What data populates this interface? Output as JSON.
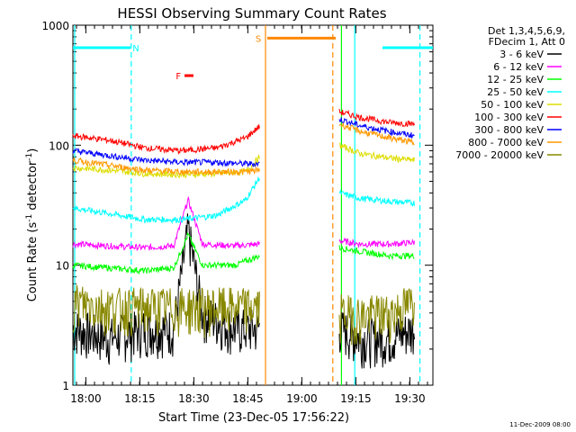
{
  "chart_data": {
    "type": "line",
    "title": "HESSI Observing Summary Count Rates",
    "xlabel": "Start Time (23-Dec-05 17:56:22)",
    "ylabel_main": "Count Rate (s",
    "ylabel_sup1": "-1",
    "ylabel_mid": " detector",
    "ylabel_sup2": "-1",
    "ylabel_end": ")",
    "yscale": "log",
    "ylim": [
      1,
      1000
    ],
    "xlim_minutes": [
      0,
      100
    ],
    "x_ticks": [
      {
        "label": "18:00",
        "m": 3.6
      },
      {
        "label": "18:15",
        "m": 18.6
      },
      {
        "label": "18:30",
        "m": 33.6
      },
      {
        "label": "18:45",
        "m": 48.6
      },
      {
        "label": "19:00",
        "m": 63.6
      },
      {
        "label": "19:15",
        "m": 78.6
      },
      {
        "label": "19:30",
        "m": 93.6
      }
    ],
    "y_ticks": [
      {
        "label": "1",
        "v": 1
      },
      {
        "label": "10",
        "v": 10
      },
      {
        "label": "100",
        "v": 100
      },
      {
        "label": "1000",
        "v": 1000
      }
    ],
    "legend_header": [
      "Det 1,3,4,5,6,9,",
      "FDecim 1, Att 0"
    ],
    "series": [
      {
        "name": "3 - 6 keV",
        "color": "#000000",
        "seg1": [
          [
            0,
            3
          ],
          [
            10,
            2.5
          ],
          [
            20,
            3
          ],
          [
            28,
            3
          ],
          [
            32,
            20
          ],
          [
            36,
            4
          ],
          [
            45,
            3
          ],
          [
            52,
            3
          ]
        ],
        "seg2": [
          [
            74,
            3
          ],
          [
            80,
            2.5
          ],
          [
            88,
            2.5
          ],
          [
            95,
            3
          ]
        ]
      },
      {
        "name": "6 - 12 keV",
        "color": "#ff00ff",
        "seg1": [
          [
            0,
            15
          ],
          [
            10,
            14.5
          ],
          [
            20,
            14
          ],
          [
            28,
            14.5
          ],
          [
            32,
            35
          ],
          [
            36,
            15
          ],
          [
            45,
            14.5
          ],
          [
            52,
            15
          ]
        ],
        "seg2": [
          [
            74,
            16
          ],
          [
            80,
            15
          ],
          [
            88,
            15
          ],
          [
            95,
            15.5
          ]
        ]
      },
      {
        "name": "12 - 25 keV",
        "color": "#00ff00",
        "seg1": [
          [
            0,
            10
          ],
          [
            10,
            9.5
          ],
          [
            20,
            9
          ],
          [
            28,
            9.5
          ],
          [
            32,
            18
          ],
          [
            36,
            10
          ],
          [
            45,
            10
          ],
          [
            52,
            12
          ]
        ],
        "seg2": [
          [
            74,
            14
          ],
          [
            80,
            13
          ],
          [
            88,
            12
          ],
          [
            95,
            12
          ]
        ]
      },
      {
        "name": "25 - 50 keV",
        "color": "#00ffff",
        "seg1": [
          [
            0,
            30
          ],
          [
            10,
            27
          ],
          [
            20,
            24
          ],
          [
            30,
            24
          ],
          [
            40,
            26
          ],
          [
            48,
            35
          ],
          [
            52,
            55
          ]
        ],
        "seg2": [
          [
            74,
            40
          ],
          [
            80,
            36
          ],
          [
            88,
            34
          ],
          [
            95,
            33
          ]
        ]
      },
      {
        "name": "50 - 100 keV",
        "color": "#dddd00",
        "seg1": [
          [
            0,
            65
          ],
          [
            10,
            62
          ],
          [
            20,
            58
          ],
          [
            30,
            57
          ],
          [
            40,
            58
          ],
          [
            48,
            60
          ],
          [
            52,
            80
          ]
        ],
        "seg2": [
          [
            74,
            100
          ],
          [
            80,
            85
          ],
          [
            88,
            78
          ],
          [
            95,
            75
          ]
        ]
      },
      {
        "name": "100 - 300 keV",
        "color": "#ff0000",
        "seg1": [
          [
            0,
            120
          ],
          [
            10,
            110
          ],
          [
            20,
            95
          ],
          [
            30,
            90
          ],
          [
            40,
            95
          ],
          [
            48,
            115
          ],
          [
            52,
            145
          ]
        ],
        "seg2": [
          [
            74,
            190
          ],
          [
            80,
            170
          ],
          [
            88,
            155
          ],
          [
            95,
            150
          ]
        ]
      },
      {
        "name": "300 - 800 keV",
        "color": "#0000ff",
        "seg1": [
          [
            0,
            90
          ],
          [
            10,
            82
          ],
          [
            20,
            75
          ],
          [
            30,
            72
          ],
          [
            40,
            72
          ],
          [
            48,
            70
          ],
          [
            52,
            70
          ]
        ],
        "seg2": [
          [
            74,
            165
          ],
          [
            80,
            145
          ],
          [
            88,
            130
          ],
          [
            95,
            120
          ]
        ]
      },
      {
        "name": "800 - 7000 keV",
        "color": "#ff9900",
        "seg1": [
          [
            0,
            75
          ],
          [
            10,
            68
          ],
          [
            20,
            62
          ],
          [
            30,
            60
          ],
          [
            40,
            60
          ],
          [
            48,
            60
          ],
          [
            52,
            62
          ]
        ],
        "seg2": [
          [
            74,
            150
          ],
          [
            80,
            130
          ],
          [
            88,
            115
          ],
          [
            95,
            105
          ]
        ]
      },
      {
        "name": "7000 - 20000 keV",
        "color": "#888800",
        "seg1": [
          [
            0,
            5
          ],
          [
            10,
            4.5
          ],
          [
            20,
            4.5
          ],
          [
            30,
            4.5
          ],
          [
            40,
            4.5
          ],
          [
            52,
            4.5
          ]
        ],
        "seg2": [
          [
            74,
            4
          ],
          [
            80,
            3.8
          ],
          [
            88,
            4
          ],
          [
            95,
            5
          ]
        ]
      }
    ],
    "flags": [
      {
        "label": "N",
        "color": "#00ffff",
        "m_start": 0,
        "m_end": 16,
        "label_m": 17.5,
        "level": 650
      },
      {
        "label": "N",
        "color": "#00ffff",
        "m_start": 86,
        "m_end": 100,
        "label_m": null,
        "level": 650
      },
      {
        "label": "S",
        "color": "#ff8800",
        "m_start": 54,
        "m_end": 73,
        "label_m": 51.5,
        "level": 780
      },
      {
        "label": "F",
        "color": "#ff0000",
        "m_start": 31,
        "m_end": 33.5,
        "label_m": 29.3,
        "level": 380
      }
    ],
    "vlines": [
      {
        "m": 0.5,
        "color": "#00ffff",
        "dash": false
      },
      {
        "m": 16.2,
        "color": "#00ffff",
        "dash": true
      },
      {
        "m": 53.5,
        "color": "#ff8800",
        "dash": false
      },
      {
        "m": 72.2,
        "color": "#ff8800",
        "dash": true
      },
      {
        "m": 74.6,
        "color": "#00ff00",
        "dash": false
      },
      {
        "m": 78.3,
        "color": "#00ffff",
        "dash": false
      },
      {
        "m": 96.4,
        "color": "#00ffff",
        "dash": true
      }
    ],
    "legend_placement": "right",
    "grid": false
  },
  "footer_date": "11-Dec-2009 08:00"
}
